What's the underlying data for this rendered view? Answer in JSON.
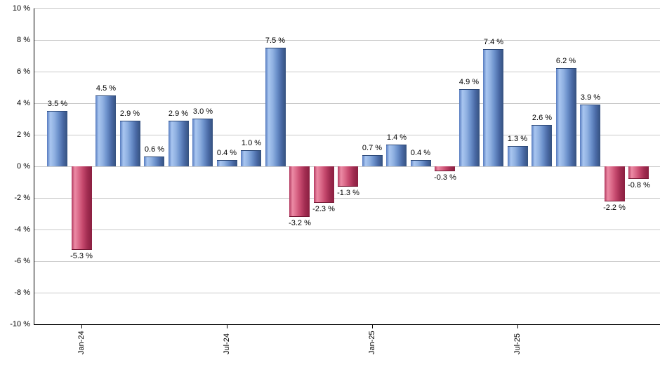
{
  "chart_data": {
    "type": "bar",
    "title": "",
    "xlabel": "",
    "ylabel": "",
    "ylim": [
      -10,
      10
    ],
    "grid": true,
    "legend": "none",
    "unit": "%",
    "values": [
      3.5,
      -5.3,
      4.5,
      2.9,
      0.6,
      2.9,
      3.0,
      0.4,
      1.0,
      7.5,
      -3.2,
      -2.3,
      -1.3,
      0.7,
      1.4,
      0.4,
      -0.3,
      4.9,
      7.4,
      1.3,
      2.6,
      6.2,
      3.9,
      -2.2,
      -0.8
    ],
    "bar_value_labels": [
      "3.5 %",
      "-5.3 %",
      "4.5 %",
      "2.9 %",
      "0.6 %",
      "2.9 %",
      "3.0 %",
      "0.4 %",
      "1.0 %",
      "7.5 %",
      "-3.2 %",
      "-2.3 %",
      "-1.3 %",
      "0.7 %",
      "1.4 %",
      "0.4 %",
      "-0.3 %",
      "4.9 %",
      "7.4 %",
      "1.3 %",
      "2.6 %",
      "6.2 %",
      "3.9 %",
      "-2.2 %",
      "-0.8 %"
    ],
    "x_ticks": [
      {
        "index": 1,
        "label": "Jan-24"
      },
      {
        "index": 7,
        "label": "Jul-24"
      },
      {
        "index": 13,
        "label": "Jan-25"
      },
      {
        "index": 19,
        "label": "Jul-25"
      }
    ],
    "y_ticks": [
      {
        "value": 10,
        "label": "10 %"
      },
      {
        "value": 8,
        "label": "8 %"
      },
      {
        "value": 6,
        "label": "6 %"
      },
      {
        "value": 4,
        "label": "4 %"
      },
      {
        "value": 2,
        "label": "2 %"
      },
      {
        "value": 0,
        "label": "0 %"
      },
      {
        "value": -2,
        "label": "-2 %"
      },
      {
        "value": -4,
        "label": "-4 %"
      },
      {
        "value": -6,
        "label": "-6 %"
      },
      {
        "value": -8,
        "label": "-8 %"
      },
      {
        "value": -10,
        "label": "-10 %"
      }
    ],
    "colors": {
      "positive_bar": "#6f92cc",
      "negative_bar": "#c4476c",
      "gridline": "#c9c9c9",
      "axis": "#000000",
      "label_text": "#000000"
    }
  }
}
